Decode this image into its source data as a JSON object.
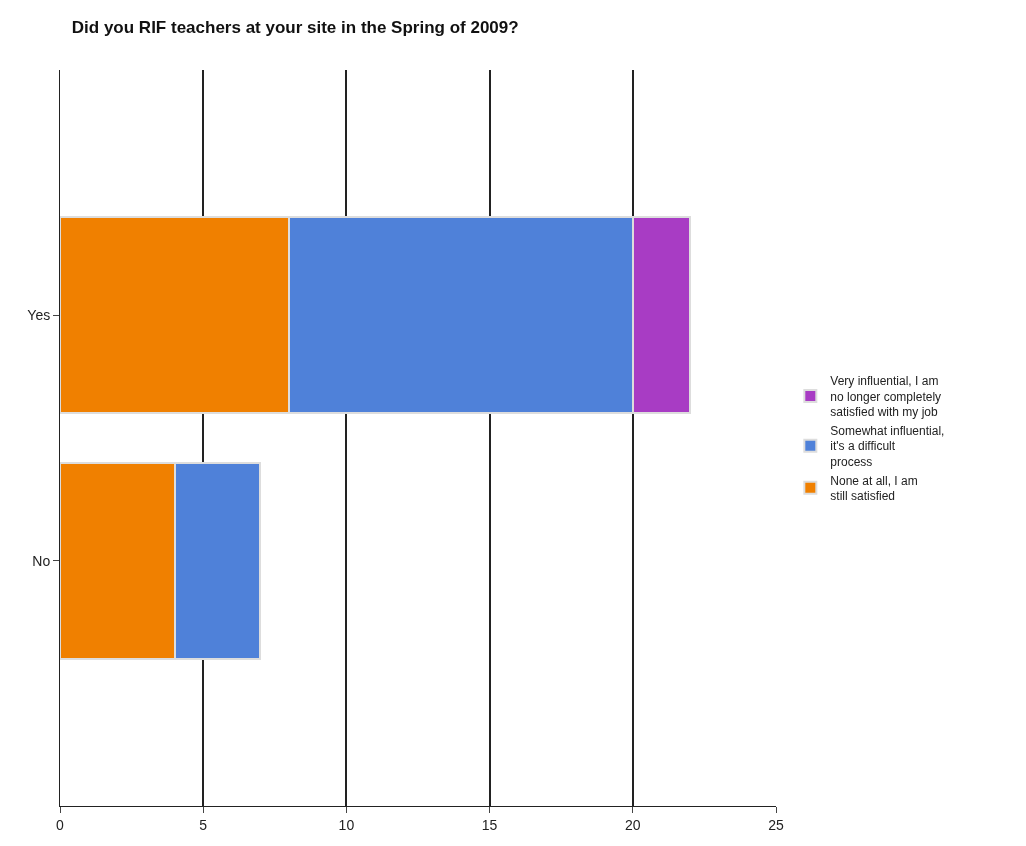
{
  "chart_data": {
    "type": "bar",
    "title": "Did you RIF teachers at your site in the Spring of 2009?",
    "orientation": "horizontal",
    "stacked": true,
    "categories": [
      "Yes",
      "No"
    ],
    "series": [
      {
        "name": "None at all, I am still satisfied",
        "color": "#f08000",
        "values": [
          8,
          4
        ]
      },
      {
        "name": "Somewhat influential, it's a difficult process",
        "color": "#4f81d9",
        "values": [
          12,
          3
        ]
      },
      {
        "name": "Very influential, I am no longer completely satisfied with my job",
        "color": "#a83cc4",
        "values": [
          2,
          null
        ]
      }
    ],
    "xlim": [
      0,
      25
    ],
    "xticks": [
      0,
      5,
      10,
      15,
      20,
      25
    ],
    "grid": "x",
    "legend": "right"
  }
}
